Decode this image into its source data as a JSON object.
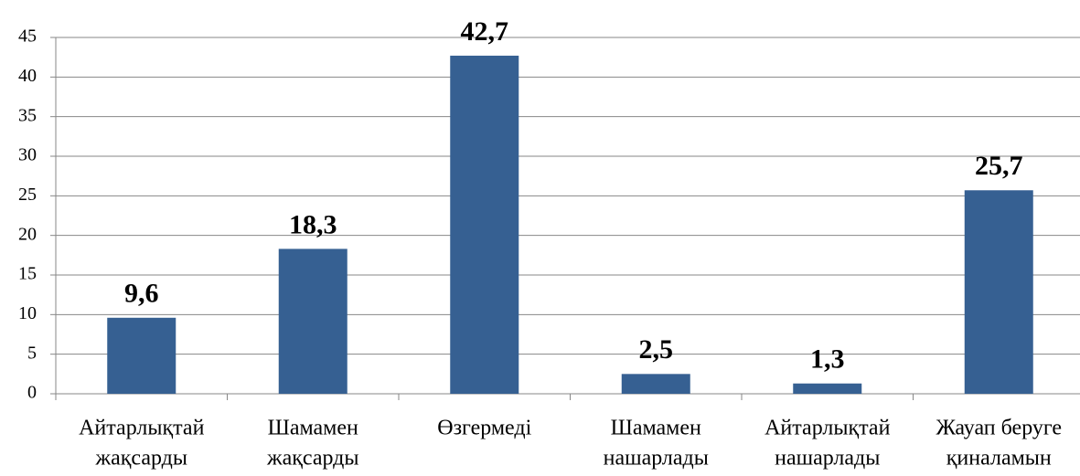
{
  "chart_data": {
    "type": "bar",
    "categories": [
      [
        "Айтарлықтай",
        "жақсарды"
      ],
      [
        "Шамамен",
        "жақсарды"
      ],
      [
        "Өзгермеді"
      ],
      [
        "Шамамен",
        "нашарлады"
      ],
      [
        "Айтарлықтай",
        "нашарлады"
      ],
      [
        "Жауап беруге",
        "қиналамын"
      ]
    ],
    "values": [
      9.6,
      18.3,
      42.7,
      2.5,
      1.3,
      25.7
    ],
    "value_labels": [
      "9,6",
      "18,3",
      "42,7",
      "2,5",
      "1,3",
      "25,7"
    ],
    "color": "#366092",
    "ylim": [
      0,
      45
    ],
    "yticks": [
      0,
      5,
      10,
      15,
      20,
      25,
      30,
      35,
      40,
      45
    ],
    "grid": true
  }
}
